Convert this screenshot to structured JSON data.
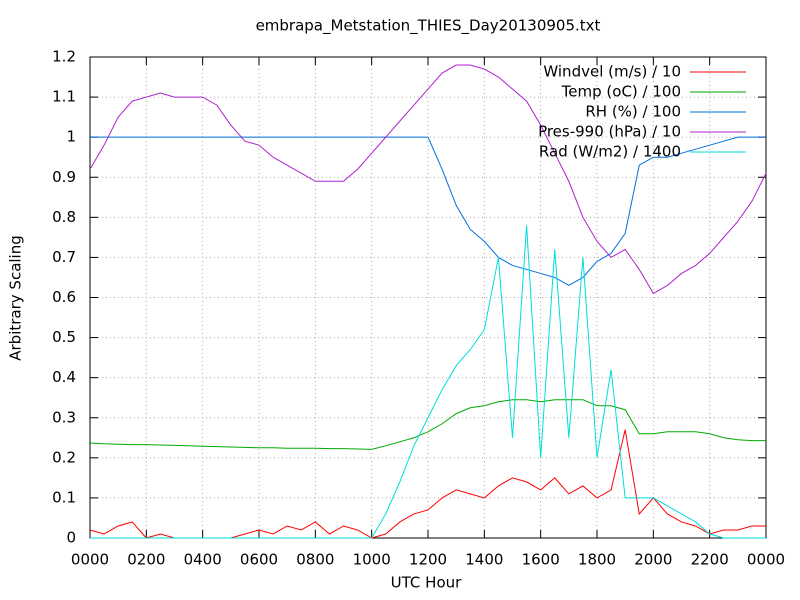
{
  "chart_data": {
    "type": "line",
    "title": "embrapa_Metstation_THIES_Day20130905.txt",
    "x_label": "UTC Hour",
    "y_label": "Arbitrary Scaling",
    "x": [
      0,
      0.5,
      1,
      1.5,
      2,
      2.5,
      3,
      3.5,
      4,
      4.5,
      5,
      5.5,
      6,
      6.5,
      7,
      7.5,
      8,
      8.5,
      9,
      9.5,
      10,
      10.5,
      11,
      11.5,
      12,
      12.5,
      13,
      13.5,
      14,
      14.5,
      15,
      15.5,
      16,
      16.5,
      17,
      17.5,
      18,
      18.5,
      19,
      19.5,
      20,
      20.5,
      21,
      21.5,
      22,
      22.5,
      23,
      23.5,
      24
    ],
    "series": [
      {
        "name": "Windvel (m/s) / 10",
        "color": "#ff0000",
        "values": [
          0.02,
          0.01,
          0.03,
          0.04,
          0.0,
          0.01,
          0.0,
          0.0,
          0,
          0,
          0,
          0.01,
          0.02,
          0.01,
          0.03,
          0.02,
          0.04,
          0.01,
          0.03,
          0.02,
          0.0,
          0.01,
          0.04,
          0.06,
          0.07,
          0.1,
          0.12,
          0.11,
          0.1,
          0.13,
          0.15,
          0.14,
          0.12,
          0.15,
          0.11,
          0.13,
          0.1,
          0.12,
          0.27,
          0.06,
          0.1,
          0.06,
          0.04,
          0.03,
          0.01,
          0.02,
          0.02,
          0.03,
          0.03
        ]
      },
      {
        "name": "Temp (oC) / 100",
        "color": "#00aa00",
        "values": [
          0.237,
          0.235,
          0.234,
          0.233,
          0.233,
          0.232,
          0.231,
          0.23,
          0.229,
          0.228,
          0.227,
          0.226,
          0.225,
          0.225,
          0.224,
          0.224,
          0.224,
          0.223,
          0.223,
          0.222,
          0.221,
          0.23,
          0.24,
          0.25,
          0.265,
          0.285,
          0.31,
          0.325,
          0.33,
          0.34,
          0.345,
          0.345,
          0.34,
          0.345,
          0.345,
          0.345,
          0.33,
          0.33,
          0.32,
          0.26,
          0.26,
          0.265,
          0.265,
          0.265,
          0.26,
          0.25,
          0.245,
          0.243,
          0.243
        ]
      },
      {
        "name": "RH (%) / 100",
        "color": "#0070e0",
        "values": [
          1,
          1,
          1,
          1,
          1,
          1,
          1,
          1,
          1,
          1,
          1,
          1,
          1,
          1,
          1,
          1,
          1,
          1,
          1,
          1,
          1,
          1,
          1,
          1,
          1,
          0.92,
          0.83,
          0.77,
          0.74,
          0.7,
          0.68,
          0.67,
          0.66,
          0.65,
          0.63,
          0.65,
          0.69,
          0.71,
          0.76,
          0.93,
          0.95,
          0.95,
          0.96,
          0.97,
          0.98,
          0.99,
          1.0,
          1.0,
          1.0
        ]
      },
      {
        "name": "Pres-990 (hPa) / 10",
        "color": "#b020d0",
        "values": [
          0.92,
          0.98,
          1.05,
          1.09,
          1.1,
          1.11,
          1.1,
          1.1,
          1.1,
          1.08,
          1.03,
          0.99,
          0.98,
          0.95,
          0.93,
          0.91,
          0.89,
          0.89,
          0.89,
          0.92,
          0.96,
          1.0,
          1.04,
          1.08,
          1.12,
          1.16,
          1.18,
          1.18,
          1.17,
          1.15,
          1.12,
          1.09,
          1.03,
          0.96,
          0.89,
          0.8,
          0.74,
          0.7,
          0.72,
          0.67,
          0.61,
          0.63,
          0.66,
          0.68,
          0.71,
          0.75,
          0.79,
          0.84,
          0.91
        ]
      },
      {
        "name": "Rad (W/m2) / 1400",
        "color": "#00dddd",
        "values": [
          0,
          0,
          0,
          0,
          0,
          0,
          0,
          0,
          0,
          0,
          0,
          0,
          0,
          0,
          0,
          0,
          0,
          0,
          0,
          0,
          0,
          0.06,
          0.14,
          0.23,
          0.3,
          0.37,
          0.43,
          0.47,
          0.52,
          0.7,
          0.25,
          0.78,
          0.2,
          0.72,
          0.25,
          0.7,
          0.2,
          0.42,
          0.1,
          0.1,
          0.1,
          0.08,
          0.06,
          0.04,
          0.01,
          0,
          0,
          0,
          0
        ]
      }
    ],
    "xlim": [
      0,
      24
    ],
    "xticks": [
      {
        "value": 0,
        "label": "0000"
      },
      {
        "value": 2,
        "label": "0200"
      },
      {
        "value": 4,
        "label": "0400"
      },
      {
        "value": 6,
        "label": "0600"
      },
      {
        "value": 8,
        "label": "0800"
      },
      {
        "value": 10,
        "label": "1000"
      },
      {
        "value": 12,
        "label": "1200"
      },
      {
        "value": 14,
        "label": "1400"
      },
      {
        "value": 16,
        "label": "1600"
      },
      {
        "value": 18,
        "label": "1800"
      },
      {
        "value": 20,
        "label": "2000"
      },
      {
        "value": 22,
        "label": "2200"
      },
      {
        "value": 24,
        "label": "0000"
      }
    ],
    "ylim": [
      0,
      1.2
    ],
    "yticks": [
      0,
      0.1,
      0.2,
      0.3,
      0.4,
      0.5,
      0.6,
      0.7,
      0.8,
      0.9,
      1,
      1.1,
      1.2
    ],
    "grid": true,
    "legend": "top-right"
  }
}
